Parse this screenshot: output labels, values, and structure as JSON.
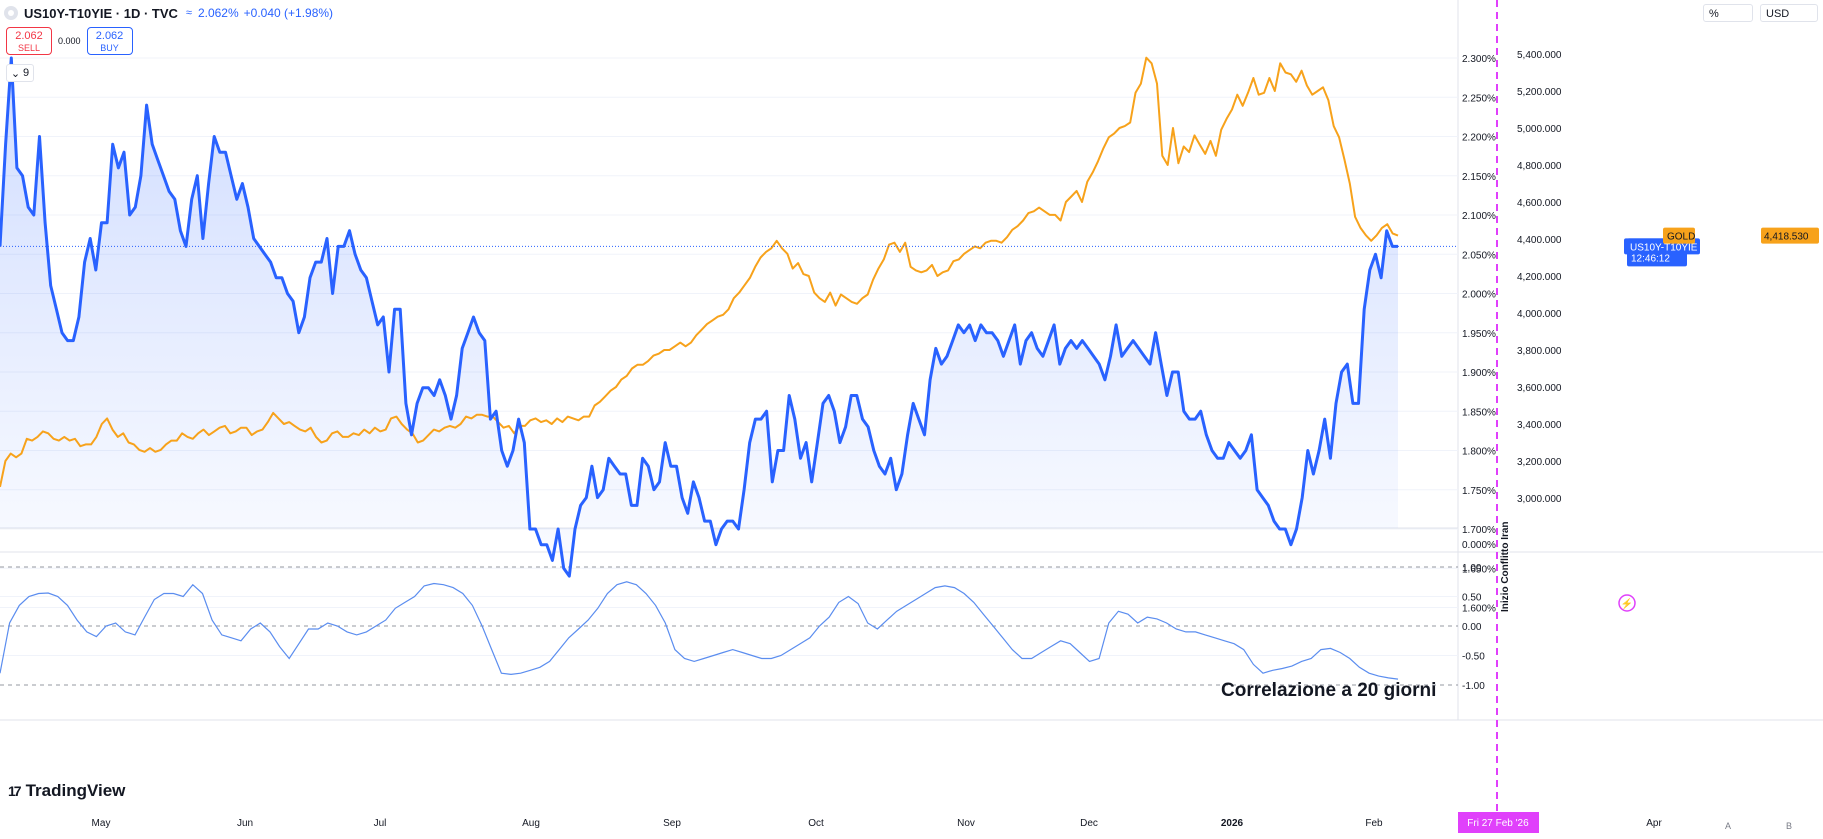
{
  "header": {
    "title": "US10Y-T10YIE · 1D · TVC",
    "price": "2.062%",
    "change": "+0.040 (+1.98%)",
    "indicator_icon": "wave-icon"
  },
  "trade": {
    "sell_price": "2.062",
    "sell_label": "SELL",
    "spread": "0.000",
    "buy_price": "2.062",
    "buy_label": "BUY"
  },
  "collapse_count": "9",
  "units": {
    "left": "%",
    "right": "USD"
  },
  "logo": "TradingView",
  "annotation_main": "Inizio Conflitto Iran",
  "annotation_corr": "Correlazione a 20 giorni",
  "cursor_date": "Fri 27 Feb '26",
  "scale_buttons": [
    "A",
    "B"
  ],
  "colors": {
    "us10y": "#2962ff",
    "gold": "#f7a21b",
    "corr": "#5b8def",
    "marker": "#e040fb",
    "accent_bg": "#2962ff"
  },
  "chart_data": [
    {
      "type": "line",
      "x_axis_ticks": [
        "May",
        "Jun",
        "Jul",
        "Aug",
        "Sep",
        "Oct",
        "Nov",
        "Dec",
        "2026",
        "Feb",
        "Apr"
      ],
      "left_axis": {
        "unit": "%",
        "ylim": [
          1.6,
          2.3
        ],
        "ticks": [
          "2.300%",
          "2.250%",
          "2.200%",
          "2.150%",
          "2.100%",
          "2.050%",
          "2.000%",
          "1.950%",
          "1.900%",
          "1.850%",
          "1.800%",
          "1.750%",
          "1.700%",
          "1.650%",
          "1.600%"
        ]
      },
      "right_axis": {
        "unit": "USD",
        "ylim": [
          3000,
          5400
        ],
        "ticks": [
          "5,400.000",
          "5,200.000",
          "5,000.000",
          "4,800.000",
          "4,600.000",
          "4,400.000",
          "4,200.000",
          "4,000.000",
          "3,800.000",
          "3,600.000",
          "3,400.000",
          "3,200.000",
          "3,000.000"
        ]
      },
      "series": [
        {
          "name": "US10Y-T10YIE",
          "axis": "left",
          "last_label": "2.062%",
          "countdown": "12:46:12",
          "values": [
            2.06,
            2.19,
            2.3,
            2.16,
            2.15,
            2.11,
            2.1,
            2.2,
            2.09,
            2.01,
            1.98,
            1.95,
            1.94,
            1.94,
            1.97,
            2.04,
            2.07,
            2.03,
            2.09,
            2.09,
            2.19,
            2.16,
            2.18,
            2.1,
            2.11,
            2.15,
            2.24,
            2.19,
            2.17,
            2.15,
            2.13,
            2.12,
            2.08,
            2.06,
            2.12,
            2.15,
            2.07,
            2.14,
            2.2,
            2.18,
            2.18,
            2.15,
            2.12,
            2.14,
            2.11,
            2.07,
            2.06,
            2.05,
            2.04,
            2.02,
            2.02,
            2.0,
            1.99,
            1.95,
            1.97,
            2.02,
            2.04,
            2.04,
            2.07,
            2.0,
            2.06,
            2.06,
            2.08,
            2.05,
            2.03,
            2.02,
            1.99,
            1.96,
            1.97,
            1.9,
            1.98,
            1.98,
            1.86,
            1.82,
            1.86,
            1.88,
            1.88,
            1.87,
            1.89,
            1.87,
            1.84,
            1.87,
            1.93,
            1.95,
            1.97,
            1.95,
            1.94,
            1.84,
            1.85,
            1.8,
            1.78,
            1.8,
            1.84,
            1.81,
            1.7,
            1.7,
            1.68,
            1.68,
            1.66,
            1.7,
            1.65,
            1.64,
            1.7,
            1.73,
            1.74,
            1.78,
            1.74,
            1.75,
            1.79,
            1.78,
            1.77,
            1.77,
            1.73,
            1.73,
            1.79,
            1.78,
            1.75,
            1.76,
            1.81,
            1.78,
            1.78,
            1.74,
            1.72,
            1.76,
            1.74,
            1.71,
            1.71,
            1.68,
            1.7,
            1.71,
            1.71,
            1.7,
            1.75,
            1.81,
            1.84,
            1.84,
            1.85,
            1.76,
            1.8,
            1.8,
            1.87,
            1.84,
            1.79,
            1.81,
            1.76,
            1.81,
            1.86,
            1.87,
            1.85,
            1.81,
            1.83,
            1.87,
            1.87,
            1.84,
            1.83,
            1.8,
            1.78,
            1.77,
            1.79,
            1.75,
            1.77,
            1.82,
            1.86,
            1.84,
            1.82,
            1.89,
            1.93,
            1.91,
            1.92,
            1.94,
            1.96,
            1.95,
            1.96,
            1.94,
            1.96,
            1.95,
            1.95,
            1.94,
            1.92,
            1.94,
            1.96,
            1.91,
            1.94,
            1.95,
            1.93,
            1.92,
            1.94,
            1.96,
            1.91,
            1.93,
            1.94,
            1.93,
            1.94,
            1.93,
            1.92,
            1.91,
            1.89,
            1.92,
            1.96,
            1.92,
            1.93,
            1.94,
            1.93,
            1.92,
            1.91,
            1.95,
            1.91,
            1.87,
            1.9,
            1.9,
            1.85,
            1.84,
            1.84,
            1.85,
            1.82,
            1.8,
            1.79,
            1.79,
            1.81,
            1.8,
            1.79,
            1.8,
            1.82,
            1.75,
            1.74,
            1.73,
            1.71,
            1.7,
            1.7,
            1.68,
            1.7,
            1.74,
            1.8,
            1.77,
            1.8,
            1.84,
            1.79,
            1.86,
            1.9,
            1.91,
            1.86,
            1.86,
            1.98,
            2.03,
            2.05,
            2.02,
            2.08,
            2.06,
            2.06
          ]
        },
        {
          "name": "GOLD",
          "axis": "right",
          "last_label": "4,418.530",
          "values": [
            3060,
            3200,
            3240,
            3220,
            3240,
            3320,
            3310,
            3330,
            3360,
            3350,
            3320,
            3310,
            3330,
            3310,
            3320,
            3280,
            3290,
            3290,
            3330,
            3400,
            3430,
            3370,
            3330,
            3350,
            3300,
            3290,
            3260,
            3250,
            3270,
            3250,
            3260,
            3290,
            3310,
            3310,
            3350,
            3330,
            3320,
            3350,
            3370,
            3340,
            3360,
            3380,
            3390,
            3350,
            3360,
            3380,
            3380,
            3340,
            3360,
            3370,
            3410,
            3460,
            3430,
            3400,
            3410,
            3390,
            3370,
            3360,
            3380,
            3330,
            3300,
            3310,
            3350,
            3360,
            3330,
            3330,
            3350,
            3340,
            3370,
            3350,
            3380,
            3360,
            3370,
            3430,
            3440,
            3400,
            3370,
            3350,
            3300,
            3310,
            3340,
            3370,
            3360,
            3380,
            3390,
            3380,
            3400,
            3440,
            3430,
            3450,
            3450,
            3440,
            3440,
            3410,
            3380,
            3390,
            3350,
            3390,
            3390,
            3420,
            3430,
            3410,
            3420,
            3400,
            3430,
            3410,
            3440,
            3430,
            3420,
            3440,
            3440,
            3500,
            3520,
            3550,
            3580,
            3600,
            3640,
            3660,
            3700,
            3720,
            3720,
            3740,
            3770,
            3780,
            3800,
            3800,
            3820,
            3840,
            3820,
            3840,
            3880,
            3910,
            3940,
            3960,
            3980,
            3990,
            4020,
            4080,
            4110,
            4150,
            4190,
            4250,
            4300,
            4330,
            4350,
            4390,
            4350,
            4320,
            4240,
            4270,
            4210,
            4200,
            4110,
            4080,
            4060,
            4110,
            4040,
            4100,
            4080,
            4060,
            4050,
            4080,
            4100,
            4180,
            4240,
            4290,
            4370,
            4380,
            4330,
            4380,
            4250,
            4230,
            4220,
            4230,
            4260,
            4200,
            4220,
            4230,
            4280,
            4290,
            4320,
            4340,
            4360,
            4350,
            4380,
            4390,
            4390,
            4380,
            4410,
            4450,
            4470,
            4500,
            4540,
            4550,
            4570,
            4550,
            4530,
            4530,
            4500,
            4600,
            4630,
            4660,
            4600,
            4710,
            4760,
            4820,
            4890,
            4950,
            4970,
            5000,
            5010,
            5030,
            5190,
            5240,
            5380,
            5350,
            5240,
            4850,
            4800,
            5000,
            4810,
            4900,
            4870,
            4960,
            4910,
            4860,
            4930,
            4850,
            4990,
            5050,
            5100,
            5180,
            5120,
            5190,
            5270,
            5180,
            5190,
            5270,
            5200,
            5350,
            5300,
            5290,
            5250,
            5310,
            5230,
            5180,
            5200,
            5220,
            5150,
            5010,
            4950,
            4830,
            4700,
            4520,
            4460,
            4420,
            4390,
            4420,
            4460,
            4480,
            4430,
            4418.53
          ]
        }
      ]
    },
    {
      "type": "line",
      "title": "Correlazione a 20 giorni",
      "ylim": [
        -1,
        1
      ],
      "ticks": [
        "1.00",
        "0.50",
        "0.00",
        "-0.50",
        "-1.00"
      ],
      "series": [
        {
          "values": [
            -0.8,
            0.05,
            0.35,
            0.5,
            0.55,
            0.56,
            0.5,
            0.35,
            0.1,
            -0.1,
            -0.18,
            0.0,
            0.05,
            -0.1,
            -0.15,
            0.15,
            0.45,
            0.55,
            0.55,
            0.5,
            0.7,
            0.55,
            0.1,
            -0.15,
            -0.2,
            -0.25,
            -0.05,
            0.05,
            -0.1,
            -0.35,
            -0.55,
            -0.3,
            -0.05,
            -0.05,
            0.05,
            0.0,
            -0.1,
            -0.15,
            -0.1,
            0.0,
            0.1,
            0.3,
            0.4,
            0.5,
            0.68,
            0.72,
            0.7,
            0.65,
            0.55,
            0.35,
            0.0,
            -0.4,
            -0.8,
            -0.82,
            -0.8,
            -0.75,
            -0.7,
            -0.6,
            -0.4,
            -0.2,
            -0.05,
            0.1,
            0.3,
            0.55,
            0.7,
            0.75,
            0.7,
            0.55,
            0.35,
            0.05,
            -0.4,
            -0.55,
            -0.6,
            -0.55,
            -0.5,
            -0.45,
            -0.4,
            -0.45,
            -0.5,
            -0.55,
            -0.55,
            -0.5,
            -0.4,
            -0.3,
            -0.2,
            0.0,
            0.15,
            0.4,
            0.5,
            0.38,
            0.05,
            -0.05,
            0.1,
            0.25,
            0.35,
            0.45,
            0.55,
            0.65,
            0.68,
            0.65,
            0.55,
            0.4,
            0.2,
            0.0,
            -0.2,
            -0.4,
            -0.55,
            -0.55,
            -0.45,
            -0.35,
            -0.25,
            -0.3,
            -0.45,
            -0.6,
            -0.55,
            0.05,
            0.25,
            0.2,
            0.05,
            0.15,
            0.12,
            0.05,
            -0.05,
            -0.1,
            -0.1,
            -0.15,
            -0.2,
            -0.25,
            -0.3,
            -0.4,
            -0.65,
            -0.8,
            -0.75,
            -0.72,
            -0.68,
            -0.6,
            -0.55,
            -0.4,
            -0.38,
            -0.45,
            -0.55,
            -0.7,
            -0.8,
            -0.85,
            -0.88,
            -0.9
          ]
        }
      ]
    }
  ]
}
